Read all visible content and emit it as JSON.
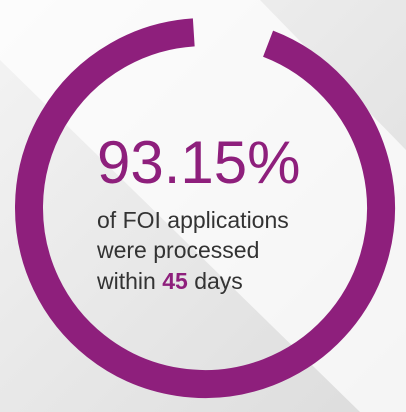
{
  "chart_data": {
    "type": "donut",
    "values": [
      93.15
    ],
    "value_labels": [
      "93.15%"
    ],
    "color": "#8e1f7c",
    "caption": [
      "of FOI applications",
      "were processed",
      "within",
      "45",
      "days"
    ]
  }
}
